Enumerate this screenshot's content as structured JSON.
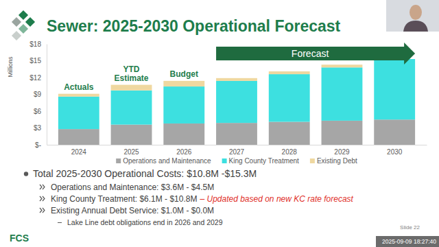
{
  "chart_data": {
    "type": "bar",
    "title": "Sewer: 2025-2030 Operational Forecast",
    "stacked": true,
    "legend": "bottom",
    "grid": false,
    "y_label": "Millions",
    "categories": [
      "2024",
      "2025",
      "2026",
      "2027",
      "2028",
      "2029",
      "2030"
    ],
    "series": [
      {
        "name": "Operations and Maintenance",
        "color": "#a6a6a6",
        "values": [
          2.8,
          3.6,
          3.8,
          3.9,
          4.1,
          4.3,
          4.5
        ]
      },
      {
        "name": "King County Treatment",
        "color": "#3de0e0",
        "values": [
          5.8,
          6.1,
          6.6,
          7.5,
          8.5,
          9.5,
          10.8
        ]
      },
      {
        "name": "Existing Debt",
        "color": "#efd8a0",
        "values": [
          0.5,
          1.0,
          1.0,
          0.5,
          0.5,
          0.5,
          0.0
        ]
      }
    ],
    "ylim": [
      0,
      18
    ],
    "yticks": [
      {
        "value": 0,
        "label": "$-"
      },
      {
        "value": 3,
        "label": "$3"
      },
      {
        "value": 6,
        "label": "$6"
      },
      {
        "value": 9,
        "label": "$9"
      },
      {
        "value": 12,
        "label": "$12"
      },
      {
        "value": 15,
        "label": "$15"
      },
      {
        "value": 18,
        "label": "$18"
      }
    ],
    "annotations": [
      {
        "text": "Actuals",
        "category": "2024"
      },
      {
        "text": "YTD Estimate",
        "category": "2025"
      },
      {
        "text": "Budget",
        "category": "2026"
      },
      {
        "text": "Forecast",
        "from": "2027",
        "to": "2030"
      }
    ]
  },
  "slide": {
    "bullets": [
      {
        "text": "Total 2025-2030 Operational Costs: $10.8M -$15.3M",
        "children": [
          {
            "text": "Operations and Maintenance: $3.6M - $4.5M"
          },
          {
            "text": "King County Treatment: $6.1M - $10.8M",
            "note": "– Updated based on new KC rate forecast"
          },
          {
            "text": "Existing Annual Debt Service: $1.0M - $0.0M",
            "children": [
              {
                "text": "Lake Line debt obligations end in 2026 and 2029"
              }
            ]
          }
        ]
      }
    ],
    "slide_number": "Slide 22",
    "logo": "FCS",
    "timestamp": "2025-09-09 18:27:40"
  }
}
